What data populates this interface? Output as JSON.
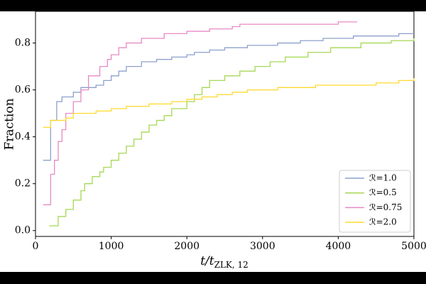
{
  "chart_data": {
    "type": "line",
    "drawstyle": "steps-post",
    "x_label": {
      "main": "t/t",
      "sub": "ZLK, 12"
    },
    "y_label": "Fraction",
    "xlim": [
      0,
      5000
    ],
    "xticks": [
      0,
      1000,
      2000,
      3000,
      4000,
      5000
    ],
    "ylim": [
      -0.025,
      0.935
    ],
    "yticks": [
      {
        "value": 0,
        "label": "0.0"
      },
      {
        "value": 0.2,
        "label": "0.2"
      },
      {
        "value": 0.4,
        "label": "0.4"
      },
      {
        "value": 0.6,
        "label": "0.6"
      },
      {
        "value": 0.8,
        "label": "0.8"
      }
    ],
    "legend": "lower right",
    "series": [
      {
        "name": "ℛ=1.0",
        "color": "#8da0cb",
        "x": [
          100,
          200,
          280,
          350,
          500,
          600,
          800,
          900,
          1000,
          1100,
          1200,
          1400,
          1600,
          1800,
          2000,
          2100,
          2300,
          2500,
          2800,
          3200,
          3500,
          3800,
          4200,
          4800,
          5000
        ],
        "values": [
          0.3,
          0.47,
          0.55,
          0.57,
          0.59,
          0.61,
          0.62,
          0.64,
          0.66,
          0.68,
          0.7,
          0.72,
          0.73,
          0.74,
          0.75,
          0.76,
          0.77,
          0.78,
          0.79,
          0.8,
          0.81,
          0.82,
          0.83,
          0.84,
          0.84
        ]
      },
      {
        "name": "ℛ=0.5",
        "color": "#a6d854",
        "x": [
          180,
          300,
          400,
          500,
          600,
          650,
          750,
          850,
          900,
          1000,
          1100,
          1200,
          1300,
          1400,
          1500,
          1600,
          1700,
          1800,
          2000,
          2100,
          2200,
          2300,
          2500,
          2700,
          2900,
          3100,
          3300,
          3600,
          3900,
          4300,
          4700,
          5000
        ],
        "values": [
          0.02,
          0.06,
          0.09,
          0.13,
          0.17,
          0.2,
          0.23,
          0.25,
          0.27,
          0.3,
          0.33,
          0.36,
          0.39,
          0.42,
          0.45,
          0.47,
          0.49,
          0.52,
          0.55,
          0.58,
          0.61,
          0.64,
          0.66,
          0.68,
          0.7,
          0.72,
          0.74,
          0.76,
          0.78,
          0.8,
          0.81,
          0.82
        ]
      },
      {
        "name": "ℛ=0.75",
        "color": "#e78ac3",
        "x": [
          100,
          200,
          250,
          300,
          350,
          400,
          500,
          600,
          700,
          850,
          950,
          1000,
          1100,
          1200,
          1400,
          1700,
          2000,
          2300,
          2600,
          2700,
          4000,
          4250
        ],
        "values": [
          0.11,
          0.24,
          0.3,
          0.38,
          0.43,
          0.5,
          0.55,
          0.6,
          0.66,
          0.7,
          0.73,
          0.75,
          0.78,
          0.8,
          0.82,
          0.84,
          0.85,
          0.86,
          0.87,
          0.88,
          0.89,
          0.89
        ]
      },
      {
        "name": "ℛ=2.0",
        "color": "#ffd92f",
        "x": [
          100,
          200,
          400,
          500,
          800,
          1000,
          1200,
          1500,
          1800,
          2000,
          2200,
          2400,
          2600,
          2800,
          3200,
          3700,
          4500,
          4800,
          5000
        ],
        "values": [
          0.44,
          0.47,
          0.48,
          0.5,
          0.51,
          0.52,
          0.53,
          0.54,
          0.55,
          0.56,
          0.57,
          0.58,
          0.59,
          0.6,
          0.61,
          0.62,
          0.63,
          0.64,
          0.65
        ]
      }
    ]
  }
}
